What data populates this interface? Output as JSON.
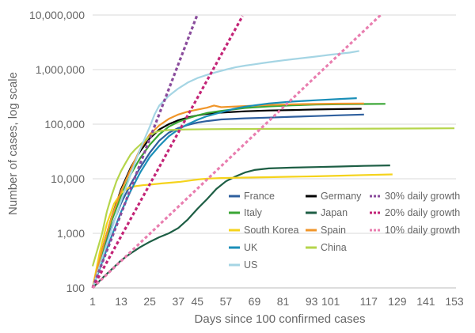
{
  "chart_data": {
    "type": "line",
    "title": "",
    "xlabel": "Days since 100 confirmed cases",
    "ylabel": "Number of cases, log scale",
    "yscale": "log",
    "xlim": [
      1,
      153
    ],
    "ylim": [
      100,
      10000000
    ],
    "xticks": [
      1,
      13,
      25,
      37,
      45,
      57,
      69,
      81,
      93,
      101,
      117,
      129,
      141,
      153
    ],
    "yticks": [
      100,
      1000,
      10000,
      100000,
      1000000,
      10000000
    ],
    "ytick_labels": [
      "100",
      "1,000",
      "10,000",
      "100,000",
      "1,000,000",
      "10,000,000"
    ],
    "legend_position": "bottom-right",
    "series": [
      {
        "name": "France",
        "color": "#2e5f9e",
        "style": "solid",
        "points": [
          [
            1,
            100
          ],
          [
            5,
            400
          ],
          [
            9,
            1300
          ],
          [
            13,
            3600
          ],
          [
            17,
            8000
          ],
          [
            21,
            16000
          ],
          [
            25,
            30000
          ],
          [
            29,
            50000
          ],
          [
            33,
            70000
          ],
          [
            37,
            85000
          ],
          [
            41,
            97000
          ],
          [
            45,
            107000
          ],
          [
            49,
            114000
          ],
          [
            55,
            122000
          ],
          [
            65,
            128000
          ],
          [
            75,
            132000
          ],
          [
            85,
            137000
          ],
          [
            95,
            141000
          ],
          [
            105,
            146000
          ],
          [
            115,
            150000
          ]
        ]
      },
      {
        "name": "Germany",
        "color": "#000000",
        "style": "solid",
        "points": [
          [
            1,
            100
          ],
          [
            5,
            500
          ],
          [
            9,
            2000
          ],
          [
            13,
            6500
          ],
          [
            17,
            16000
          ],
          [
            21,
            32000
          ],
          [
            25,
            55000
          ],
          [
            29,
            80000
          ],
          [
            33,
            100000
          ],
          [
            37,
            118000
          ],
          [
            41,
            133000
          ],
          [
            45,
            145000
          ],
          [
            49,
            155000
          ],
          [
            55,
            163000
          ],
          [
            65,
            172000
          ],
          [
            75,
            178000
          ],
          [
            85,
            182000
          ],
          [
            95,
            186000
          ],
          [
            105,
            189000
          ],
          [
            114,
            192000
          ]
        ]
      },
      {
        "name": "Italy",
        "color": "#3aa635",
        "style": "solid",
        "points": [
          [
            1,
            100
          ],
          [
            5,
            450
          ],
          [
            9,
            1700
          ],
          [
            13,
            5000
          ],
          [
            17,
            12000
          ],
          [
            21,
            24000
          ],
          [
            25,
            42000
          ],
          [
            29,
            65000
          ],
          [
            33,
            90000
          ],
          [
            37,
            110000
          ],
          [
            41,
            128000
          ],
          [
            45,
            145000
          ],
          [
            49,
            160000
          ],
          [
            55,
            175000
          ],
          [
            65,
            198000
          ],
          [
            75,
            212000
          ],
          [
            85,
            222000
          ],
          [
            95,
            229000
          ],
          [
            105,
            232000
          ],
          [
            115,
            234000
          ],
          [
            124,
            236000
          ]
        ]
      },
      {
        "name": "Japan",
        "color": "#1d5e44",
        "style": "solid",
        "points": [
          [
            1,
            100
          ],
          [
            5,
            150
          ],
          [
            9,
            220
          ],
          [
            13,
            320
          ],
          [
            17,
            430
          ],
          [
            21,
            560
          ],
          [
            25,
            700
          ],
          [
            29,
            850
          ],
          [
            33,
            1000
          ],
          [
            37,
            1250
          ],
          [
            41,
            1800
          ],
          [
            45,
            2800
          ],
          [
            49,
            4200
          ],
          [
            53,
            6500
          ],
          [
            57,
            9000
          ],
          [
            61,
            11000
          ],
          [
            65,
            13000
          ],
          [
            69,
            14500
          ],
          [
            75,
            15500
          ],
          [
            85,
            16000
          ],
          [
            95,
            16400
          ],
          [
            105,
            16800
          ],
          [
            115,
            17200
          ],
          [
            126,
            17600
          ]
        ]
      },
      {
        "name": "South Korea",
        "color": "#f5d31c",
        "style": "solid",
        "points": [
          [
            1,
            100
          ],
          [
            4,
            450
          ],
          [
            7,
            1500
          ],
          [
            10,
            3500
          ],
          [
            13,
            5500
          ],
          [
            16,
            6800
          ],
          [
            19,
            7300
          ],
          [
            22,
            7600
          ],
          [
            26,
            7900
          ],
          [
            30,
            8200
          ],
          [
            34,
            8500
          ],
          [
            38,
            8800
          ],
          [
            42,
            9300
          ],
          [
            46,
            9800
          ],
          [
            50,
            10100
          ],
          [
            55,
            10300
          ],
          [
            65,
            10500
          ],
          [
            75,
            10700
          ],
          [
            85,
            10900
          ],
          [
            95,
            11100
          ],
          [
            105,
            11400
          ],
          [
            115,
            11700
          ],
          [
            127,
            12000
          ]
        ]
      },
      {
        "name": "Spain",
        "color": "#f0962a",
        "style": "solid",
        "points": [
          [
            1,
            100
          ],
          [
            5,
            500
          ],
          [
            9,
            2000
          ],
          [
            13,
            6000
          ],
          [
            17,
            15000
          ],
          [
            21,
            35000
          ],
          [
            25,
            65000
          ],
          [
            29,
            95000
          ],
          [
            33,
            125000
          ],
          [
            37,
            150000
          ],
          [
            41,
            170000
          ],
          [
            45,
            185000
          ],
          [
            49,
            200000
          ],
          [
            52,
            220000
          ],
          [
            55,
            205000
          ],
          [
            65,
            215000
          ],
          [
            75,
            225000
          ],
          [
            85,
            232000
          ],
          [
            95,
            236000
          ],
          [
            105,
            238000
          ],
          [
            115,
            240000
          ]
        ]
      },
      {
        "name": "UK",
        "color": "#1b8fb8",
        "style": "solid",
        "points": [
          [
            1,
            100
          ],
          [
            5,
            300
          ],
          [
            9,
            900
          ],
          [
            13,
            2500
          ],
          [
            17,
            6000
          ],
          [
            21,
            13000
          ],
          [
            25,
            25000
          ],
          [
            29,
            40000
          ],
          [
            33,
            60000
          ],
          [
            37,
            80000
          ],
          [
            41,
            100000
          ],
          [
            45,
            120000
          ],
          [
            49,
            140000
          ],
          [
            55,
            165000
          ],
          [
            60,
            190000
          ],
          [
            65,
            210000
          ],
          [
            75,
            240000
          ],
          [
            85,
            260000
          ],
          [
            95,
            275000
          ],
          [
            105,
            290000
          ],
          [
            112,
            300000
          ]
        ]
      },
      {
        "name": "China",
        "color": "#b5d54b",
        "style": "solid",
        "points": [
          [
            1,
            250
          ],
          [
            3,
            500
          ],
          [
            5,
            1000
          ],
          [
            7,
            2500
          ],
          [
            9,
            5000
          ],
          [
            11,
            9000
          ],
          [
            13,
            14000
          ],
          [
            15,
            20000
          ],
          [
            17,
            28000
          ],
          [
            19,
            35000
          ],
          [
            21,
            42000
          ],
          [
            23,
            50000
          ],
          [
            25,
            60000
          ],
          [
            27,
            70000
          ],
          [
            29,
            75000
          ],
          [
            33,
            78000
          ],
          [
            40,
            80000
          ],
          [
            50,
            81000
          ],
          [
            60,
            81500
          ],
          [
            80,
            82000
          ],
          [
            100,
            82500
          ],
          [
            120,
            83000
          ],
          [
            140,
            83500
          ],
          [
            153,
            84000
          ]
        ]
      },
      {
        "name": "US",
        "color": "#a5d5e4",
        "style": "solid",
        "points": [
          [
            1,
            100
          ],
          [
            5,
            350
          ],
          [
            9,
            1200
          ],
          [
            13,
            4000
          ],
          [
            17,
            12000
          ],
          [
            21,
            35000
          ],
          [
            25,
            90000
          ],
          [
            27,
            150000
          ],
          [
            29,
            220000
          ],
          [
            33,
            330000
          ],
          [
            37,
            450000
          ],
          [
            41,
            580000
          ],
          [
            45,
            700000
          ],
          [
            49,
            800000
          ],
          [
            53,
            900000
          ],
          [
            57,
            1000000
          ],
          [
            61,
            1100000
          ],
          [
            65,
            1180000
          ],
          [
            69,
            1250000
          ],
          [
            73,
            1330000
          ],
          [
            77,
            1400000
          ],
          [
            81,
            1480000
          ],
          [
            85,
            1550000
          ],
          [
            89,
            1620000
          ],
          [
            93,
            1700000
          ],
          [
            97,
            1780000
          ],
          [
            101,
            1880000
          ],
          [
            105,
            1960000
          ],
          [
            109,
            2050000
          ],
          [
            113,
            2200000
          ]
        ]
      },
      {
        "name": "30% daily growth",
        "color": "#8a4c9c",
        "style": "dashed",
        "points": [
          [
            1,
            100
          ],
          [
            45,
            10200000
          ]
        ]
      },
      {
        "name": "20% daily growth",
        "color": "#c32577",
        "style": "dashed",
        "points": [
          [
            1,
            100
          ],
          [
            64,
            9600000
          ]
        ]
      },
      {
        "name": "10% daily growth",
        "color": "#e97fb0",
        "style": "dashed",
        "points": [
          [
            1,
            100
          ],
          [
            122,
            10000000
          ]
        ]
      }
    ]
  }
}
